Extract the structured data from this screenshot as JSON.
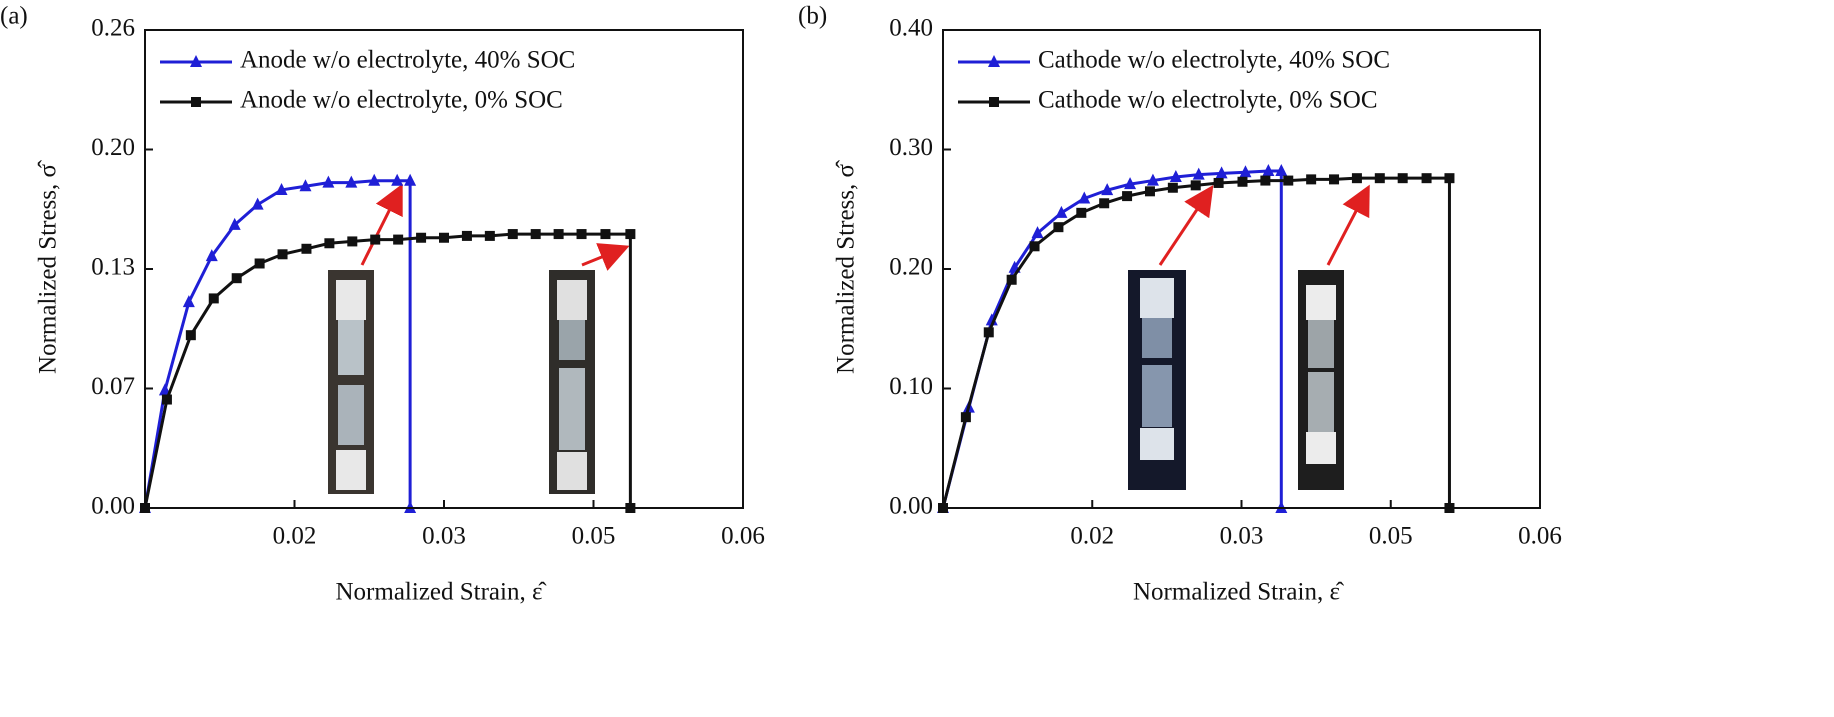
{
  "chart_data": [
    {
      "type": "line",
      "panel_label": "(a)",
      "xlabel": "Normalized Strain, ε̂",
      "ylabel": "Normalized Stress, σ̂",
      "xlim": [
        0,
        0.06
      ],
      "ylim": [
        0,
        0.26
      ],
      "xticks": [
        {
          "value": 0.015,
          "label": "0.02"
        },
        0.03,
        {
          "value": 0.045,
          "label": "0.05"
        },
        0.06
      ],
      "yticks": [
        {
          "value": 0,
          "label": "0.00"
        },
        {
          "value": 0.065,
          "label": "0.07"
        },
        0.13,
        {
          "value": 0.195,
          "label": "0.20"
        },
        0.26
      ],
      "series": [
        {
          "name": "Anode w/o electrolyte, 40% SOC",
          "color": "#1f1fd6",
          "marker": "triangle",
          "x": [
            0,
            0.002,
            0.0044,
            0.0067,
            0.009,
            0.0113,
            0.0137,
            0.0161,
            0.0184,
            0.0207,
            0.023,
            0.0253,
            0.0266,
            0.0266
          ],
          "values": [
            0,
            0.064,
            0.112,
            0.137,
            0.154,
            0.165,
            0.173,
            0.175,
            0.177,
            0.177,
            0.178,
            0.178,
            0.178,
            0
          ]
        },
        {
          "name": "Anode w/o electrolyte, 0% SOC",
          "color": "#111111",
          "marker": "square",
          "x": [
            0,
            0.0022,
            0.0046,
            0.0069,
            0.0092,
            0.0115,
            0.0138,
            0.0162,
            0.0185,
            0.0208,
            0.0231,
            0.0254,
            0.0277,
            0.03,
            0.0323,
            0.0346,
            0.0369,
            0.0392,
            0.0415,
            0.0438,
            0.0462,
            0.0487,
            0.0487
          ],
          "values": [
            0,
            0.059,
            0.094,
            0.114,
            0.125,
            0.133,
            0.138,
            0.141,
            0.144,
            0.145,
            0.146,
            0.146,
            0.147,
            0.147,
            0.148,
            0.148,
            0.149,
            0.149,
            0.149,
            0.149,
            0.149,
            0.149,
            0
          ]
        }
      ]
    },
    {
      "type": "line",
      "panel_label": "(b)",
      "xlabel": "Normalized Strain, ε̂",
      "ylabel": "Normalized Stress, σ̂",
      "xlim": [
        0,
        0.06
      ],
      "ylim": [
        0,
        0.4
      ],
      "xticks": [
        {
          "value": 0.015,
          "label": "0.02"
        },
        0.03,
        {
          "value": 0.045,
          "label": "0.05"
        },
        0.06
      ],
      "yticks": [
        {
          "value": 0,
          "label": "0.00"
        },
        {
          "value": 0.1,
          "label": "0.10"
        },
        {
          "value": 0.2,
          "label": "0.20"
        },
        {
          "value": 0.3,
          "label": "0.30"
        },
        {
          "value": 0.4,
          "label": "0.40"
        }
      ],
      "series": [
        {
          "name": "Cathode w/o electrolyte, 40% SOC",
          "color": "#1f1fd6",
          "marker": "triangle",
          "x": [
            0,
            0.0026,
            0.0049,
            0.0072,
            0.0095,
            0.0119,
            0.0142,
            0.0165,
            0.0188,
            0.0211,
            0.0234,
            0.0257,
            0.028,
            0.0304,
            0.0327,
            0.034,
            0.034
          ],
          "values": [
            0,
            0.084,
            0.157,
            0.201,
            0.23,
            0.247,
            0.259,
            0.266,
            0.271,
            0.274,
            0.277,
            0.279,
            0.28,
            0.281,
            0.282,
            0.282,
            0
          ]
        },
        {
          "name": "Cathode w/o electrolyte, 0% SOC",
          "color": "#111111",
          "marker": "square",
          "x": [
            0,
            0.0023,
            0.0046,
            0.0069,
            0.0092,
            0.0116,
            0.0139,
            0.0162,
            0.0185,
            0.0208,
            0.0231,
            0.0254,
            0.0277,
            0.0301,
            0.0324,
            0.0347,
            0.037,
            0.0393,
            0.0416,
            0.0439,
            0.0462,
            0.0486,
            0.0509,
            0.0509
          ],
          "values": [
            0,
            0.076,
            0.147,
            0.191,
            0.219,
            0.235,
            0.247,
            0.255,
            0.261,
            0.265,
            0.268,
            0.27,
            0.272,
            0.273,
            0.274,
            0.274,
            0.275,
            0.275,
            0.276,
            0.276,
            0.276,
            0.276,
            0.276,
            0
          ]
        }
      ]
    }
  ]
}
